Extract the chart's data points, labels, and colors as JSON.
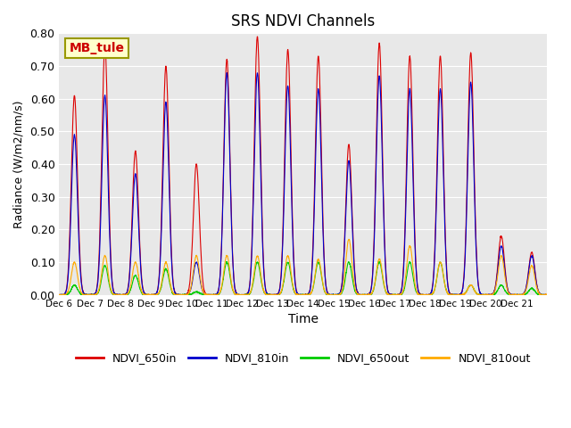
{
  "title": "SRS NDVI Channels",
  "xlabel": "Time",
  "ylabel": "Radiance (W/m2/nm/s)",
  "ylim": [
    0.0,
    0.8
  ],
  "yticks": [
    0.0,
    0.1,
    0.2,
    0.3,
    0.4,
    0.5,
    0.6,
    0.7,
    0.8
  ],
  "xtick_labels": [
    "Dec 6",
    "Dec 7",
    "Dec 8",
    "Dec 9",
    "Dec 10",
    "Dec 11",
    "Dec 12",
    "Dec 13",
    "Dec 14",
    "Dec 15",
    "Dec 16",
    "Dec 17",
    "Dec 18",
    "Dec 19",
    "Dec 20",
    "Dec 21"
  ],
  "colors": {
    "NDVI_650in": "#dd0000",
    "NDVI_810in": "#0000cc",
    "NDVI_650out": "#00cc00",
    "NDVI_810out": "#ffaa00"
  },
  "annotation_text": "MB_tule",
  "annotation_color": "#cc0000",
  "annotation_bg": "#ffffcc",
  "annotation_border": "#999900",
  "bg_color": "#e8e8e8",
  "peaks_650in": [
    0.61,
    0.76,
    0.44,
    0.7,
    0.4,
    0.72,
    0.79,
    0.75,
    0.73,
    0.46,
    0.77,
    0.73,
    0.73,
    0.74,
    0.18,
    0.13
  ],
  "peaks_810in": [
    0.49,
    0.61,
    0.37,
    0.59,
    0.1,
    0.68,
    0.68,
    0.64,
    0.63,
    0.41,
    0.67,
    0.63,
    0.63,
    0.65,
    0.15,
    0.12
  ],
  "peaks_650out": [
    0.03,
    0.09,
    0.06,
    0.08,
    0.01,
    0.1,
    0.1,
    0.1,
    0.1,
    0.1,
    0.1,
    0.1,
    0.1,
    0.03,
    0.03,
    0.02
  ],
  "peaks_810out": [
    0.1,
    0.12,
    0.1,
    0.1,
    0.12,
    0.12,
    0.12,
    0.12,
    0.11,
    0.17,
    0.11,
    0.15,
    0.1,
    0.03,
    0.12,
    0.09
  ],
  "n_days": 16,
  "points_per_day": 200,
  "figsize": [
    6.4,
    4.8
  ],
  "dpi": 100
}
